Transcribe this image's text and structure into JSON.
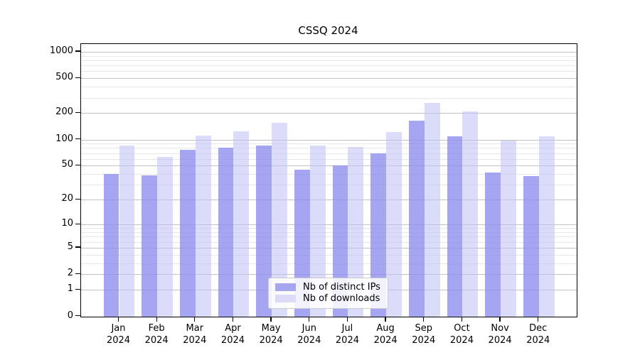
{
  "chart_data": {
    "type": "bar",
    "title": "CSSQ 2024",
    "categories": [
      "Jan 2024",
      "Feb 2024",
      "Mar 2024",
      "Apr 2024",
      "May 2024",
      "Jun 2024",
      "Jul 2024",
      "Aug 2024",
      "Sep 2024",
      "Oct 2024",
      "Nov 2024",
      "Dec 2024"
    ],
    "series": [
      {
        "name": "Nb of distinct IPs",
        "values": [
          40,
          39,
          77,
          81,
          86,
          45,
          50,
          70,
          165,
          108,
          42,
          38
        ],
        "fill": "rgba(140,140,237,0.78)",
        "legend_swatch": "#a6a6f0"
      },
      {
        "name": "Nb of downloads",
        "values": [
          86,
          63,
          110,
          125,
          156,
          86,
          83,
          122,
          260,
          210,
          97,
          108
        ],
        "fill": "rgba(193,193,246,0.58)",
        "legend_swatch": "#dbdbf7"
      }
    ],
    "y_axis": {
      "scale": "log1p",
      "major_ticks": [
        0,
        1,
        2,
        5,
        10,
        20,
        50,
        100,
        200,
        500,
        1000
      ],
      "minor_gridlines": [
        3,
        4,
        6,
        7,
        8,
        9,
        30,
        40,
        60,
        70,
        80,
        90,
        300,
        400,
        600,
        700,
        800,
        900
      ],
      "ylim": [
        0,
        1234
      ],
      "grid": true
    },
    "x_axis": {
      "months": [
        "Jan",
        "Feb",
        "Mar",
        "Apr",
        "May",
        "Jun",
        "Jul",
        "Aug",
        "Sep",
        "Oct",
        "Nov",
        "Dec"
      ],
      "year": "2024"
    },
    "legend_position": "lower center"
  },
  "colors": {
    "background": "#ffffff",
    "spine": "#000000",
    "grid_major": "#c2c2c2",
    "grid_minor": "#e8e8e8",
    "text": "#000000",
    "legend_border": "#cccccc",
    "legend_background": "rgba(255,255,255,0.85)"
  }
}
